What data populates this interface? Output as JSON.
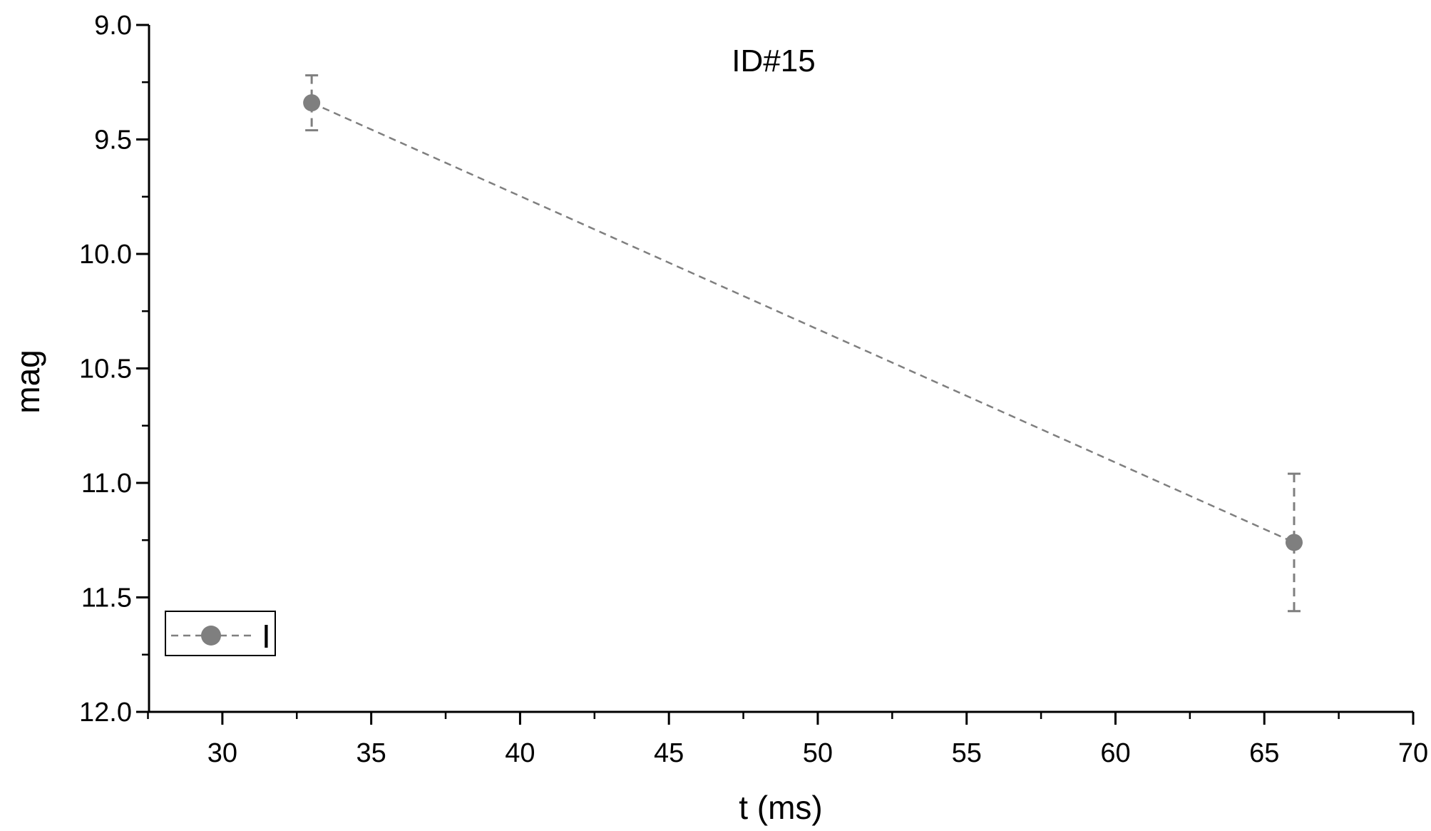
{
  "chart_data": {
    "type": "scatter",
    "title": "ID#15",
    "xlabel": "t (ms)",
    "ylabel": "mag",
    "xlim": [
      27.5,
      70
    ],
    "ylim": [
      9.0,
      12.0
    ],
    "y_inverted": true,
    "x_ticks": [
      30,
      35,
      40,
      45,
      50,
      55,
      60,
      65,
      70
    ],
    "y_ticks": [
      9.0,
      9.5,
      10.0,
      10.5,
      11.0,
      11.5,
      12.0
    ],
    "x_tick_labels": [
      "30",
      "35",
      "40",
      "45",
      "50",
      "55",
      "60",
      "65",
      "70"
    ],
    "y_tick_labels": [
      "9.0",
      "9.5",
      "10.0",
      "10.5",
      "11.0",
      "11.5",
      "12.0"
    ],
    "grid": false,
    "legend_position": "bottom-left",
    "series": [
      {
        "name": "I",
        "color": "#7f7f7f",
        "line_style": "dashed",
        "marker": "circle",
        "x": [
          33,
          66
        ],
        "y": [
          9.34,
          11.26
        ],
        "y_err": [
          0.12,
          0.3
        ]
      }
    ]
  }
}
